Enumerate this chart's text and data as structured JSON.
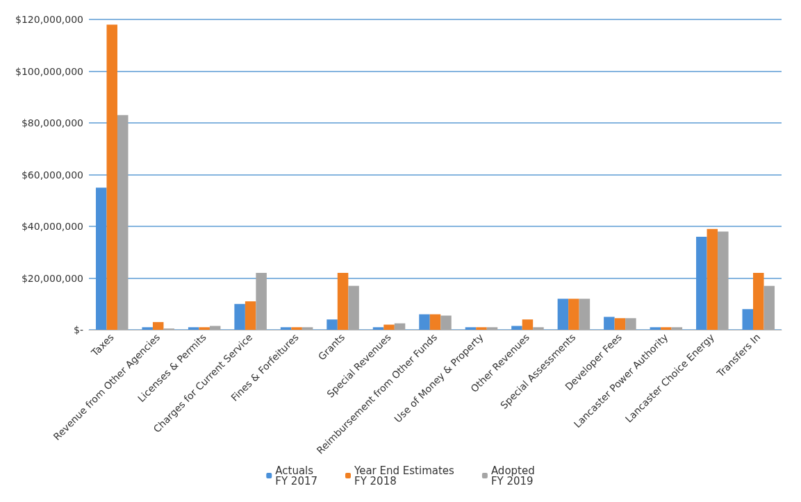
{
  "chart_data": {
    "type": "bar",
    "categories": [
      "Taxes",
      "Revenue from Other Agencies",
      "Licenses & Permits",
      "Charges for Current Service",
      "Fines & Forfeitures",
      "Grants",
      "Special Revenues",
      "Reimbursement from Other Funds",
      "Use of Money & Property",
      "Other Revenues",
      "Special Assessments",
      "Developer Fees",
      "Lancaster Power Authority",
      "Lancaster Choice Energy",
      "Transfers In"
    ],
    "series": [
      {
        "name": "Actuals\nFY 2017",
        "color": "#4a90d9",
        "values": [
          55000000,
          1000000,
          1000000,
          10000000,
          1000000,
          4000000,
          1000000,
          6000000,
          1000000,
          1500000,
          12000000,
          5000000,
          1000000,
          36000000,
          8000000
        ]
      },
      {
        "name": "Year End Estimates\nFY 2018",
        "color": "#f07f22",
        "values": [
          118000000,
          3000000,
          1000000,
          11000000,
          1000000,
          22000000,
          2000000,
          6000000,
          1000000,
          4000000,
          12000000,
          4500000,
          1000000,
          39000000,
          22000000
        ]
      },
      {
        "name": "Adopted\nFY 2019",
        "color": "#a5a5a5",
        "values": [
          83000000,
          500000,
          1500000,
          22000000,
          1000000,
          17000000,
          2500000,
          5500000,
          1000000,
          1000000,
          12000000,
          4500000,
          1000000,
          38000000,
          17000000
        ]
      }
    ],
    "ylim": [
      0,
      120000000
    ],
    "yticks": [
      {
        "value": 0,
        "label": "$-"
      },
      {
        "value": 20000000,
        "label": "$20,000,000"
      },
      {
        "value": 40000000,
        "label": "$40,000,000"
      },
      {
        "value": 60000000,
        "label": "$60,000,000"
      },
      {
        "value": 80000000,
        "label": "$80,000,000"
      },
      {
        "value": 100000000,
        "label": "$100,000,000"
      },
      {
        "value": 120000000,
        "label": "$120,000,000"
      }
    ],
    "grid": "y",
    "legend": "bottom"
  }
}
